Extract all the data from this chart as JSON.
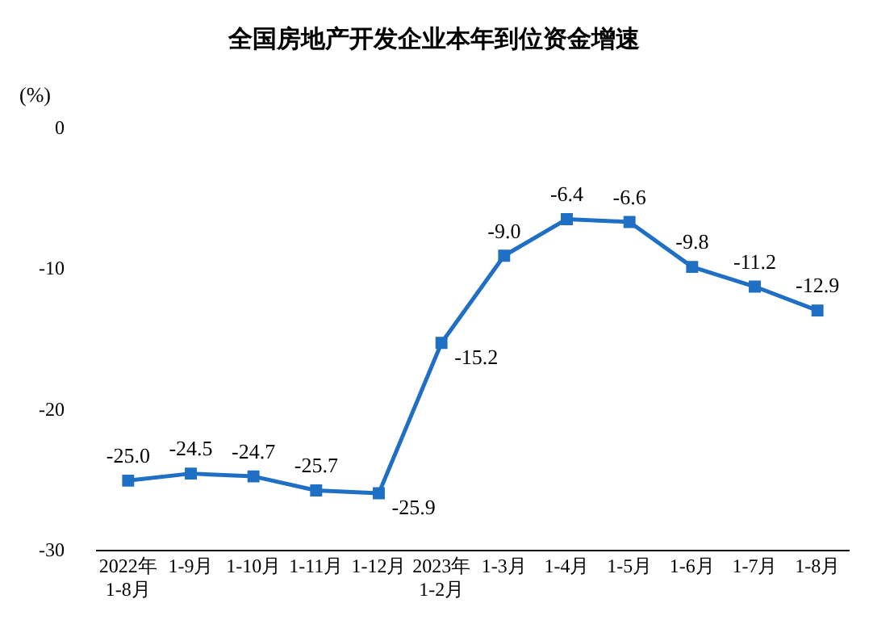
{
  "chart_data": {
    "type": "line",
    "title": "全国房地产开发企业本年到位资金增速",
    "ylabel": "(%)",
    "categories": [
      "2022年\n1-8月",
      "1-9月",
      "1-10月",
      "1-11月",
      "1-12月",
      "2023年\n1-2月",
      "1-3月",
      "1-4月",
      "1-5月",
      "1-6月",
      "1-7月",
      "1-8月"
    ],
    "series": [
      {
        "color": "#1f6fc5",
        "values": [
          -25.0,
          -24.5,
          -24.7,
          -25.7,
          -25.9,
          -15.2,
          -9.0,
          -6.4,
          -6.6,
          -9.8,
          -11.2,
          -12.9
        ],
        "value_labels": [
          "-25.0",
          "-24.5",
          "-24.7",
          "-25.7",
          "-25.9",
          "-15.2",
          "-9.0",
          "-6.4",
          "-6.6",
          "-9.8",
          "-11.2",
          "-12.9"
        ]
      }
    ],
    "ylim": [
      -30,
      0
    ],
    "yticks": [
      -30,
      -20,
      -10,
      0
    ],
    "grid": false,
    "legend": false,
    "marker": "square",
    "line_style": "solid"
  }
}
